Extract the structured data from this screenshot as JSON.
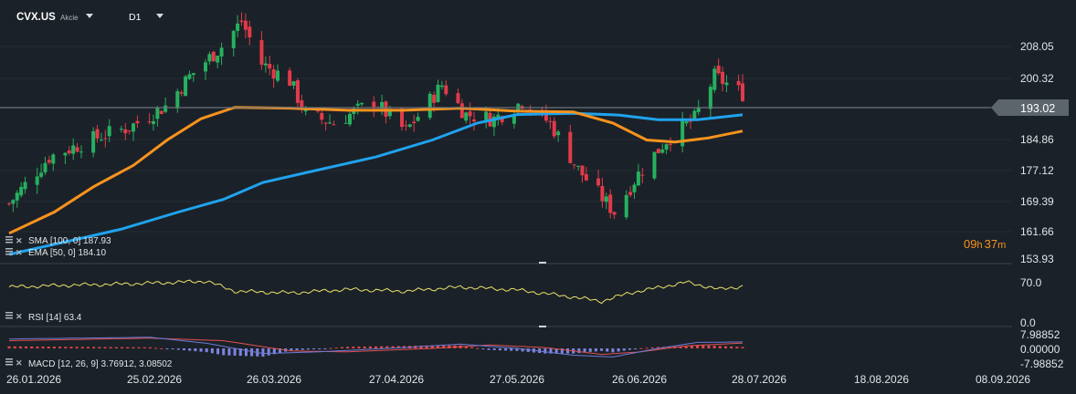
{
  "toolbar": {
    "symbol": "CVX.US",
    "asset_type": "Akcie",
    "timeframe": "D1"
  },
  "price_axis": [
    "208.05",
    "200.32",
    "193.02",
    "184.86",
    "177.12",
    "169.39",
    "161.66",
    "153.93"
  ],
  "current_price": "193.02",
  "countdown": {
    "hours": "09",
    "h": "h",
    "minutes": "37",
    "m": "m"
  },
  "indicators": {
    "sma": "SMA [100, 0] 187.93",
    "ema": "EMA [50, 0] 184.10",
    "rsi": "RSI [14] 63.4",
    "macd": "MACD [12, 26, 9] 3.76912, 3.08502"
  },
  "rsi_axis": [
    "70.0",
    "0.0"
  ],
  "macd_axis": [
    "7.98852",
    "0.00000",
    "-7.98852"
  ],
  "date_axis": [
    "26.01.2026",
    "25.02.2026",
    "26.03.2026",
    "27.04.2026",
    "27.05.2026",
    "26.06.2026",
    "28.07.2026",
    "18.08.2026",
    "08.09.2026"
  ],
  "colors": {
    "background": "#1b2128",
    "bull": "#26b05f",
    "bear": "#e03b4a",
    "sma": "#1fa3ee",
    "ema": "#f7931e",
    "rsi": "#e8e26a",
    "macd_signal": "#e05050",
    "macd_line": "#6c7bd8",
    "countdown": "#f7931e",
    "price_tag": "#5c646c"
  },
  "chart_data": {
    "type": "candlestick",
    "symbol": "CVX.US",
    "timeframe": "D1",
    "ylim": [
      153.93,
      212
    ],
    "x": [
      "26.01.2026",
      "25.02.2026",
      "26.03.2026",
      "27.04.2026",
      "27.05.2026",
      "26.06.2026",
      "28.07.2026"
    ],
    "close_keyframes": [
      {
        "date": "26.01.2026",
        "close": 167
      },
      {
        "date": "05.02.2026",
        "close": 178
      },
      {
        "date": "18.02.2026",
        "close": 183
      },
      {
        "date": "25.02.2026",
        "close": 185
      },
      {
        "date": "06.03.2026",
        "close": 190
      },
      {
        "date": "12.03.2026",
        "close": 197
      },
      {
        "date": "20.03.2026",
        "close": 204
      },
      {
        "date": "25.03.2026",
        "close": 210
      },
      {
        "date": "30.03.2026",
        "close": 200
      },
      {
        "date": "06.04.2026",
        "close": 196
      },
      {
        "date": "10.04.2026",
        "close": 188
      },
      {
        "date": "17.04.2026",
        "close": 186
      },
      {
        "date": "27.04.2026",
        "close": 191
      },
      {
        "date": "05.05.2026",
        "close": 184
      },
      {
        "date": "14.05.2026",
        "close": 195
      },
      {
        "date": "20.05.2026",
        "close": 188
      },
      {
        "date": "27.05.2026",
        "close": 187
      },
      {
        "date": "03.06.2026",
        "close": 191
      },
      {
        "date": "10.06.2026",
        "close": 186
      },
      {
        "date": "17.06.2026",
        "close": 175
      },
      {
        "date": "26.06.2026",
        "close": 165
      },
      {
        "date": "02.07.2026",
        "close": 174
      },
      {
        "date": "09.07.2026",
        "close": 182
      },
      {
        "date": "16.07.2026",
        "close": 187
      },
      {
        "date": "21.07.2026",
        "close": 197
      },
      {
        "date": "28.07.2026",
        "close": 193
      }
    ],
    "sma_100": {
      "name": "SMA [100, 0]",
      "last": 187.93,
      "points": [
        [
          0,
          155
        ],
        [
          0.1,
          158
        ],
        [
          0.2,
          161
        ],
        [
          0.3,
          165
        ],
        [
          0.38,
          168
        ],
        [
          0.45,
          172
        ],
        [
          0.55,
          175
        ],
        [
          0.65,
          178
        ],
        [
          0.75,
          182
        ],
        [
          0.83,
          186
        ],
        [
          0.9,
          188
        ],
        [
          1,
          188.3
        ],
        [
          1.08,
          187.9
        ],
        [
          1.15,
          186.8
        ],
        [
          1.22,
          186.8
        ],
        [
          1.3,
          187.93
        ]
      ]
    },
    "ema_50": {
      "name": "EMA [50, 0] ",
      "last": 184.1,
      "points": [
        [
          0,
          160
        ],
        [
          0.08,
          165
        ],
        [
          0.15,
          171
        ],
        [
          0.22,
          176
        ],
        [
          0.28,
          182
        ],
        [
          0.34,
          187
        ],
        [
          0.4,
          189.7
        ],
        [
          0.5,
          189.5
        ],
        [
          0.6,
          189
        ],
        [
          0.7,
          189
        ],
        [
          0.8,
          189.5
        ],
        [
          0.9,
          188.8
        ],
        [
          1,
          188.6
        ],
        [
          1.07,
          186
        ],
        [
          1.13,
          182
        ],
        [
          1.18,
          181.5
        ],
        [
          1.24,
          182.5
        ],
        [
          1.3,
          184.1
        ]
      ]
    },
    "rsi": {
      "name": "RSI [14]",
      "last": 63.4,
      "ylim": [
        0,
        100
      ],
      "keyframes": [
        [
          0,
          62
        ],
        [
          0.1,
          65
        ],
        [
          0.2,
          67
        ],
        [
          0.3,
          70
        ],
        [
          0.35,
          72
        ],
        [
          0.4,
          55
        ],
        [
          0.5,
          52
        ],
        [
          0.6,
          58
        ],
        [
          0.7,
          55
        ],
        [
          0.8,
          62
        ],
        [
          0.9,
          57
        ],
        [
          1.0,
          45
        ],
        [
          1.05,
          38
        ],
        [
          1.1,
          52
        ],
        [
          1.2,
          70
        ],
        [
          1.26,
          58
        ],
        [
          1.3,
          63.4
        ]
      ]
    },
    "macd": {
      "name": "MACD [12, 26, 9]",
      "line": 3.76912,
      "signal": 3.08502,
      "ylim": [
        -7.98852,
        7.98852
      ]
    }
  }
}
